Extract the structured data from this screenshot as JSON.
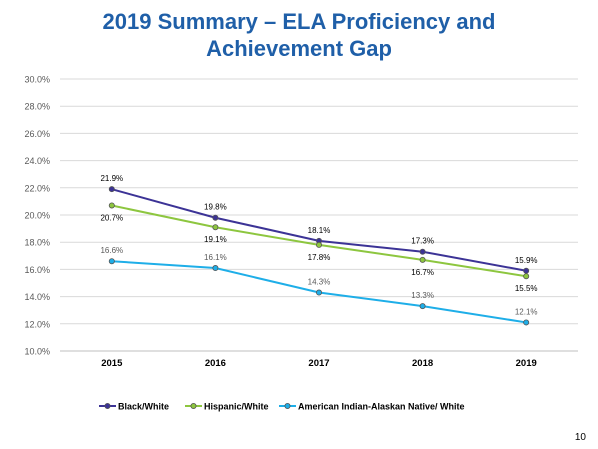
{
  "slide": {
    "title_line1": "2019 Summary – ELA Proficiency and",
    "title_line2": "Achievement Gap",
    "page_number": "10"
  },
  "colors": {
    "title": "#1f5fa8",
    "black_white": "#3c3396",
    "hispanic_white": "#8dc63f",
    "american_indian_white": "#1eaee8"
  },
  "chart_data": {
    "type": "line",
    "title": "",
    "xlabel": "",
    "ylabel": "",
    "categories": [
      "2015",
      "2016",
      "2017",
      "2018",
      "2019"
    ],
    "ylim": [
      10.0,
      30.0
    ],
    "y_ticks": [
      "10.0%",
      "12.0%",
      "14.0%",
      "16.0%",
      "18.0%",
      "20.0%",
      "22.0%",
      "24.0%",
      "26.0%",
      "28.0%",
      "30.0%"
    ],
    "grid": "horizontal",
    "legend_position": "bottom",
    "series": [
      {
        "name": "Black/White",
        "values": [
          21.9,
          19.8,
          18.1,
          17.3,
          15.9
        ],
        "labels": [
          "21.9%",
          "19.8%",
          "18.1%",
          "17.3%",
          "15.9%"
        ],
        "color": "#3c3396"
      },
      {
        "name": "Hispanic/White",
        "values": [
          20.7,
          19.1,
          17.8,
          16.7,
          15.5
        ],
        "labels": [
          "20.7%",
          "19.1%",
          "17.8%",
          "16.7%",
          "15.5%"
        ],
        "color": "#8dc63f"
      },
      {
        "name": "American Indian-Alaskan Native/ White",
        "values": [
          16.6,
          16.1,
          14.3,
          13.3,
          12.1
        ],
        "labels": [
          "16.6%",
          "16.1%",
          "14.3%",
          "13.3%",
          "12.1%"
        ],
        "color": "#1eaee8"
      }
    ]
  }
}
